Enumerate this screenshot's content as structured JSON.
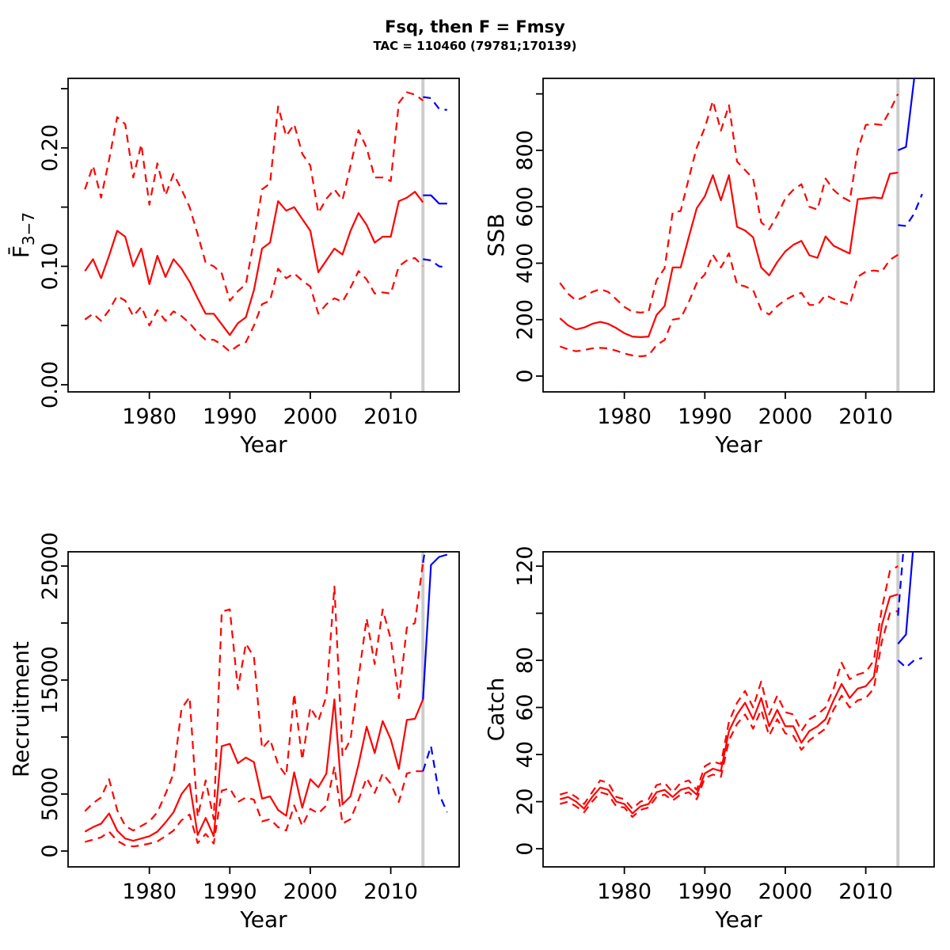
{
  "header": {
    "title": "Fsq, then F = Fmsy",
    "subtitle": "TAC = 110460 (79781;170139)"
  },
  "colors": {
    "historical": "#ff0000",
    "projection": "#0000ff",
    "divider": "#cdcdcd",
    "axis": "#000000",
    "background": "#ffffff"
  },
  "chart_data": {
    "type": "line",
    "layout": "2x2-grid",
    "grid": false,
    "legend_position": "none",
    "xlabel": "Year",
    "x_ticks": [
      1980,
      1990,
      2000,
      2010
    ],
    "divider_year": 2014,
    "years_hist": [
      1972,
      1973,
      1974,
      1975,
      1976,
      1977,
      1978,
      1979,
      1980,
      1981,
      1982,
      1983,
      1984,
      1985,
      1986,
      1987,
      1988,
      1989,
      1990,
      1991,
      1992,
      1993,
      1994,
      1995,
      1996,
      1997,
      1998,
      1999,
      2000,
      2001,
      2002,
      2003,
      2004,
      2005,
      2006,
      2007,
      2008,
      2009,
      2010,
      2011,
      2012,
      2013,
      2014
    ],
    "years_proj": [
      2014,
      2015,
      2016,
      2017
    ],
    "series_style": {
      "hist_median": "red solid",
      "hist_interval": "red dashed",
      "proj_median": "blue solid",
      "proj_interval": "blue dashed"
    },
    "panels": [
      {
        "id": "fbar",
        "ylabel": "F",
        "ylabel_overbar": true,
        "ylabel_sub": "3−7",
        "xlim": [
          1969.9,
          2018.5
        ],
        "ylim": [
          -0.006,
          0.2587
        ],
        "y_ticks": [
          0,
          0.05,
          0.1,
          0.15,
          0.2,
          0.25
        ],
        "y_tick_labels": [
          "0.00",
          "",
          "0.10",
          "",
          "0.20",
          ""
        ],
        "hist": {
          "median": [
            0.096,
            0.106,
            0.09,
            0.109,
            0.13,
            0.125,
            0.1,
            0.115,
            0.085,
            0.109,
            0.091,
            0.106,
            0.098,
            0.087,
            0.073,
            0.06,
            0.06,
            0.051,
            0.042,
            0.052,
            0.057,
            0.08,
            0.115,
            0.12,
            0.155,
            0.147,
            0.15,
            0.14,
            0.13,
            0.095,
            0.105,
            0.115,
            0.11,
            0.13,
            0.145,
            0.135,
            0.12,
            0.125,
            0.125,
            0.155,
            0.158,
            0.163,
            0.154
          ],
          "upper": [
            0.165,
            0.185,
            0.158,
            0.19,
            0.226,
            0.22,
            0.175,
            0.203,
            0.152,
            0.187,
            0.16,
            0.178,
            0.165,
            0.15,
            0.127,
            0.103,
            0.1,
            0.094,
            0.071,
            0.079,
            0.085,
            0.122,
            0.165,
            0.17,
            0.235,
            0.21,
            0.22,
            0.195,
            0.185,
            0.145,
            0.157,
            0.165,
            0.156,
            0.185,
            0.215,
            0.2,
            0.175,
            0.175,
            0.172,
            0.238,
            0.247,
            0.245,
            0.24
          ],
          "lower": [
            0.055,
            0.06,
            0.054,
            0.063,
            0.075,
            0.071,
            0.058,
            0.066,
            0.05,
            0.063,
            0.054,
            0.062,
            0.058,
            0.052,
            0.044,
            0.038,
            0.038,
            0.034,
            0.028,
            0.033,
            0.036,
            0.05,
            0.068,
            0.071,
            0.098,
            0.09,
            0.094,
            0.088,
            0.083,
            0.06,
            0.068,
            0.073,
            0.07,
            0.082,
            0.096,
            0.089,
            0.077,
            0.078,
            0.077,
            0.1,
            0.105,
            0.107,
            0.1
          ]
        },
        "proj": {
          "median": [
            0.16,
            0.16,
            0.153,
            0.153
          ],
          "upper": [
            0.243,
            0.242,
            0.233,
            0.232
          ],
          "lower": [
            0.106,
            0.105,
            0.1,
            0.099
          ]
        }
      },
      {
        "id": "ssb",
        "ylabel": "SSB",
        "ylabel_overbar": false,
        "ylabel_sub": "",
        "xlim": [
          1969.9,
          2018.5
        ],
        "ylim": [
          -56,
          1055
        ],
        "y_ticks": [
          0,
          200,
          400,
          600,
          800,
          1000
        ],
        "y_tick_labels": [
          "0",
          "200",
          "400",
          "600",
          "800",
          ""
        ],
        "hist": {
          "median": [
            205,
            180,
            165,
            172,
            185,
            192,
            185,
            170,
            152,
            140,
            138,
            140,
            216,
            248,
            385,
            385,
            492,
            595,
            637,
            712,
            623,
            712,
            529,
            516,
            492,
            385,
            357,
            404,
            442,
            465,
            479,
            428,
            419,
            495,
            462,
            448,
            434,
            627,
            630,
            633,
            630,
            717,
            721
          ],
          "upper": [
            330,
            292,
            268,
            280,
            298,
            308,
            298,
            272,
            245,
            228,
            225,
            228,
            340,
            382,
            580,
            585,
            700,
            810,
            880,
            975,
            870,
            960,
            760,
            730,
            700,
            545,
            520,
            570,
            630,
            660,
            680,
            600,
            590,
            700,
            660,
            635,
            620,
            800,
            890,
            893,
            890,
            940,
            1000
          ],
          "lower": [
            105,
            95,
            88,
            92,
            98,
            100,
            98,
            90,
            80,
            73,
            70,
            73,
            110,
            128,
            200,
            205,
            262,
            330,
            360,
            430,
            385,
            435,
            325,
            318,
            305,
            235,
            218,
            248,
            270,
            285,
            295,
            252,
            252,
            287,
            273,
            262,
            253,
            352,
            370,
            374,
            370,
            412,
            430
          ]
        },
        "proj": {
          "median": [
            800,
            812,
            1050,
            1290
          ],
          "upper": [
            1100,
            1400,
            1700,
            1900
          ],
          "lower": [
            535,
            532,
            575,
            645
          ]
        }
      },
      {
        "id": "recruitment",
        "ylabel": "Recruitment",
        "ylabel_overbar": false,
        "ylabel_sub": "",
        "xlim": [
          1969.9,
          2018.5
        ],
        "ylim": [
          -1389,
          26250
        ],
        "y_ticks": [
          0,
          5000,
          10000,
          15000,
          20000,
          25000
        ],
        "y_tick_labels": [
          "0",
          "5000",
          "",
          "15000",
          "",
          "25000"
        ],
        "hist": {
          "median": [
            1700,
            2100,
            2400,
            3300,
            1800,
            1100,
            900,
            1100,
            1300,
            1700,
            2500,
            3400,
            5000,
            5900,
            1400,
            2900,
            1300,
            9200,
            9400,
            7700,
            8200,
            7800,
            4600,
            4800,
            3600,
            3100,
            6900,
            3800,
            6300,
            5600,
            6800,
            13300,
            4100,
            4800,
            7600,
            10900,
            8600,
            11400,
            9800,
            7200,
            11500,
            11600,
            13300
          ],
          "upper": [
            3500,
            4200,
            4700,
            6300,
            3600,
            2200,
            1800,
            2200,
            2600,
            3400,
            5000,
            6800,
            12500,
            13500,
            3000,
            6200,
            2800,
            21000,
            21200,
            14200,
            18200,
            17000,
            9000,
            9800,
            7600,
            6600,
            13800,
            8000,
            12600,
            11400,
            13600,
            23200,
            8400,
            9800,
            15200,
            20400,
            16400,
            21200,
            18600,
            13400,
            19600,
            20000,
            25300
          ],
          "lower": [
            800,
            1000,
            1200,
            1700,
            900,
            500,
            400,
            500,
            650,
            850,
            1300,
            1800,
            2700,
            3200,
            700,
            1500,
            650,
            5300,
            5500,
            4300,
            4700,
            4500,
            2600,
            2800,
            2100,
            1800,
            4000,
            2200,
            3700,
            3300,
            4000,
            7400,
            2400,
            2800,
            4500,
            6400,
            5100,
            6800,
            5900,
            4300,
            6800,
            7000,
            7000
          ]
        },
        "proj": {
          "median": [
            13300,
            25100,
            25800,
            26000
          ],
          "upper": [
            25300,
            29500,
            30000,
            30000
          ],
          "lower": [
            7000,
            9200,
            5000,
            3400
          ]
        }
      },
      {
        "id": "catch",
        "ylabel": "Catch",
        "ylabel_overbar": false,
        "ylabel_sub": "",
        "xlim": [
          1969.9,
          2018.5
        ],
        "ylim": [
          -7.7,
          126.1
        ],
        "y_ticks": [
          0,
          20,
          40,
          60,
          80,
          100,
          120
        ],
        "y_tick_labels": [
          "0",
          "20",
          "40",
          "60",
          "80",
          "",
          "120"
        ],
        "hist": {
          "median": [
            21,
            22,
            20,
            17,
            22,
            26,
            25,
            20,
            19,
            15,
            18,
            19,
            24,
            25,
            22,
            25,
            26,
            23,
            32,
            34,
            33,
            50,
            57,
            62,
            55,
            64,
            52,
            59,
            52,
            52,
            45,
            50,
            52,
            55,
            63,
            70,
            64,
            68,
            69,
            73,
            95,
            107,
            108
          ],
          "upper": [
            23,
            24,
            22,
            19,
            24,
            29,
            28,
            22,
            21,
            17,
            20,
            21,
            27,
            28,
            24,
            28,
            29,
            25,
            35,
            37,
            36,
            54,
            62,
            67,
            60,
            71,
            57,
            65,
            58,
            57,
            50,
            55,
            57,
            60,
            68,
            79,
            72,
            74,
            75,
            80,
            102,
            118,
            120
          ],
          "lower": [
            19,
            20,
            18,
            15.5,
            20,
            24,
            23,
            18,
            17.5,
            13.5,
            16.5,
            17.5,
            22,
            23,
            20.5,
            23,
            24,
            21,
            30,
            31.5,
            30.5,
            46,
            53,
            57,
            51,
            59,
            48,
            55,
            49,
            48,
            42,
            46,
            48.5,
            51,
            59,
            65,
            60,
            63,
            64,
            68,
            88,
            100,
            101
          ]
        },
        "proj": {
          "median": [
            87,
            91,
            132,
            140
          ],
          "upper": [
            99,
            140,
            160,
            160
          ],
          "lower": [
            80,
            77,
            80,
            81
          ]
        }
      }
    ]
  }
}
